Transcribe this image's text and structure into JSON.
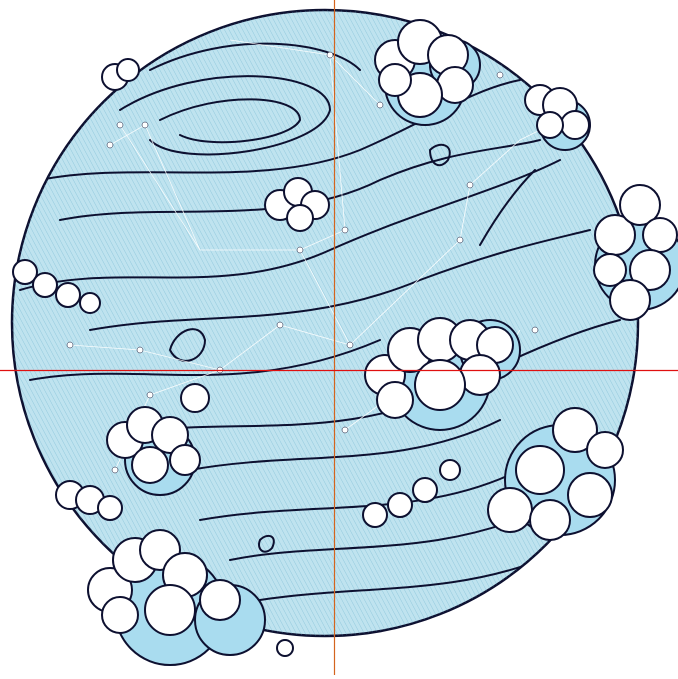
{
  "illustration": {
    "subject_icon": "planet-with-clouds-icon",
    "colors": {
      "background": "#ffffff",
      "planet_light": "#bfe3ef",
      "planet_mid": "#93c9de",
      "planet_shadow": "#6f7fb3",
      "ink": "#0d1030",
      "cloud_fill": "#ffffff",
      "cloud_shadow": "#a9dcef",
      "constellation": "#ffffff"
    }
  },
  "guides": {
    "vertical_color": "#d4641e",
    "horizontal_color": "#e01010"
  }
}
